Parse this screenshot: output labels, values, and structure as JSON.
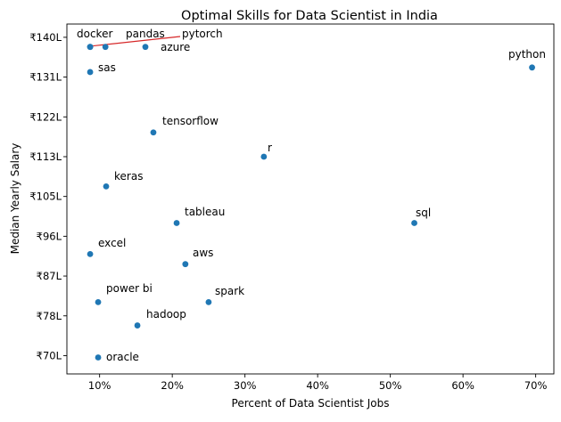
{
  "chart_data": {
    "type": "scatter",
    "title": "Optimal Skills for Data Scientist in India",
    "xlabel": "Percent of Data Scientist Jobs",
    "ylabel": "Median Yearly Salary",
    "xlim": [
      5.5,
      72.5
    ],
    "ylim": [
      66000,
      142500
    ],
    "x_ticks": [
      10,
      20,
      30,
      40,
      50,
      60,
      70
    ],
    "x_tick_labels": [
      "10%",
      "20%",
      "30%",
      "40%",
      "50%",
      "60%",
      "70%"
    ],
    "y_ticks": [
      70000,
      78700,
      87400,
      96100,
      104800,
      113500,
      122200,
      130900,
      139600
    ],
    "y_tick_labels": [
      "₹70L",
      "₹78L",
      "₹87L",
      "₹96L",
      "₹105L",
      "₹113L",
      "₹122L",
      "₹131L",
      "₹140L"
    ],
    "grid": false,
    "point_color": "#1f77b4",
    "connector_color": "#d62728",
    "points": [
      {
        "label": "docker",
        "x": 8.7,
        "y": 137500
      },
      {
        "label": "pandas",
        "x": 10.8,
        "y": 137500
      },
      {
        "label": "azure",
        "x": 16.3,
        "y": 137500
      },
      {
        "label": "pytorch",
        "x": 8.7,
        "y": 137500
      },
      {
        "label": "python",
        "x": 69.5,
        "y": 133000
      },
      {
        "label": "sas",
        "x": 8.7,
        "y": 132000
      },
      {
        "label": "tensorflow",
        "x": 17.4,
        "y": 118800
      },
      {
        "label": "r",
        "x": 32.6,
        "y": 113500
      },
      {
        "label": "keras",
        "x": 10.9,
        "y": 107000
      },
      {
        "label": "tableau",
        "x": 20.6,
        "y": 99000
      },
      {
        "label": "sql",
        "x": 53.3,
        "y": 99000
      },
      {
        "label": "excel",
        "x": 8.7,
        "y": 92200
      },
      {
        "label": "aws",
        "x": 21.8,
        "y": 90000
      },
      {
        "label": "power bi",
        "x": 9.8,
        "y": 81700
      },
      {
        "label": "spark",
        "x": 25.0,
        "y": 81700
      },
      {
        "label": "hadoop",
        "x": 15.2,
        "y": 76600
      },
      {
        "label": "oracle",
        "x": 9.8,
        "y": 69600
      }
    ]
  }
}
